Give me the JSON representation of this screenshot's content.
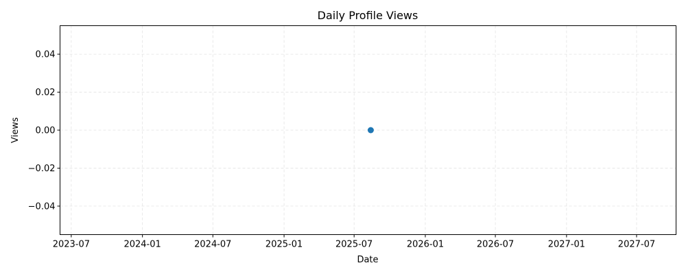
{
  "chart_data": {
    "type": "scatter",
    "title": "Daily Profile Views",
    "xlabel": "Date",
    "ylabel": "Views",
    "x_ticks": [
      "2023-07",
      "2024-01",
      "2024-07",
      "2025-01",
      "2025-07",
      "2026-01",
      "2026-07",
      "2027-01",
      "2027-07"
    ],
    "y_ticks": [
      -0.04,
      -0.02,
      0.0,
      0.02,
      0.04
    ],
    "y_tick_labels": [
      "−0.04",
      "−0.02",
      "0.00",
      "0.02",
      "0.04"
    ],
    "xlim": [
      "2023-06-02",
      "2027-10-11"
    ],
    "ylim": [
      -0.055,
      0.055
    ],
    "grid": true,
    "series": [
      {
        "x": [
          "2025-08-13"
        ],
        "y": [
          0
        ],
        "color": "#1f77b4"
      }
    ]
  }
}
